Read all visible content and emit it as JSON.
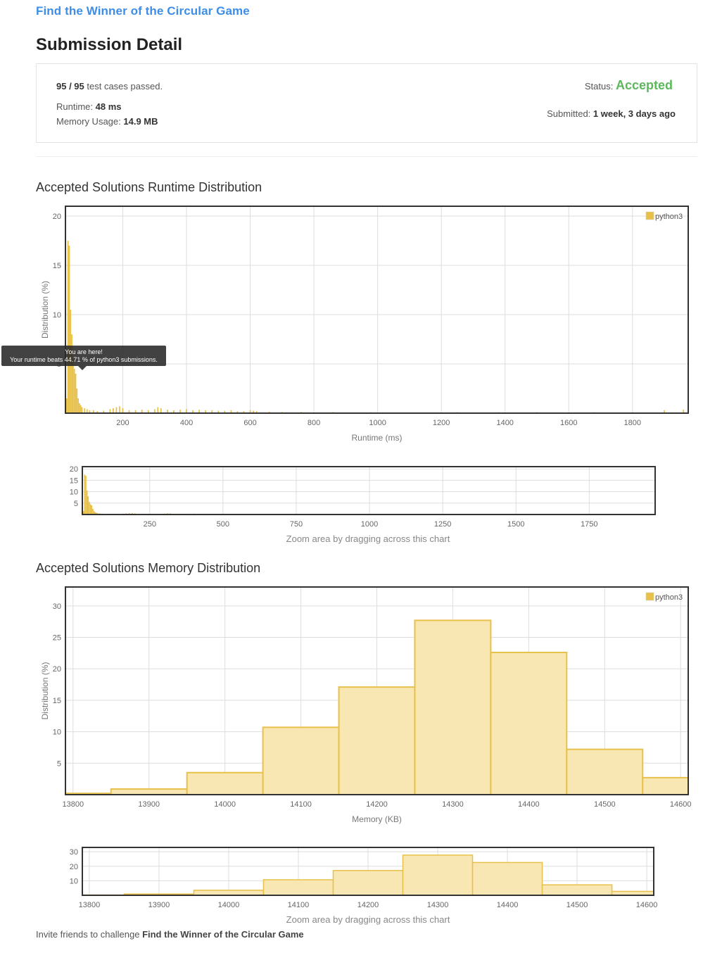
{
  "problem": {
    "title": "Find the Winner of the Circular Game"
  },
  "page": {
    "title": "Submission Detail"
  },
  "summary": {
    "cases_passed": "95 / 95",
    "cases_suffix": "test cases passed.",
    "status_label": "Status:",
    "status_value": "Accepted",
    "runtime_label": "Runtime:",
    "runtime_value": "48 ms",
    "memory_label": "Memory Usage:",
    "memory_value": "14.9 MB",
    "submitted_label": "Submitted:",
    "submitted_value": "1 week, 3 days ago"
  },
  "runtime_section": {
    "title": "Accepted Solutions Runtime Distribution"
  },
  "memory_section": {
    "title": "Accepted Solutions Memory Distribution"
  },
  "tooltip": {
    "line1": "You are here!",
    "line2": "Your runtime beats 44.71 % of python3 submissions."
  },
  "zoom_note": "Zoom area by dragging across this chart",
  "invite": {
    "prefix": "Invite friends to challenge",
    "problem": "Find the Winner of the Circular Game"
  },
  "colors": {
    "bar": "#e8c14a",
    "bar_fill_light": "#f8e6b3",
    "accepted": "#5cb85c",
    "link": "#3d8ee8"
  },
  "chart_data": [
    {
      "type": "bar",
      "ylabel": "Distribution (%)",
      "xlabel": "Runtime (ms)",
      "legend": "python3",
      "legend_position": "top-right",
      "xlim": [
        20,
        1975
      ],
      "ylim": [
        0,
        21
      ],
      "xticks": [
        200,
        400,
        600,
        800,
        1000,
        1200,
        1400,
        1600,
        1800
      ],
      "yticks": [
        5,
        10,
        15,
        20
      ],
      "grid": true,
      "x": [
        24,
        28,
        32,
        36,
        40,
        44,
        48,
        52,
        56,
        60,
        64,
        68,
        72,
        80,
        88,
        96,
        108,
        120,
        140,
        160,
        170,
        180,
        190,
        200,
        220,
        240,
        260,
        280,
        300,
        310,
        320,
        340,
        360,
        380,
        400,
        420,
        440,
        460,
        480,
        500,
        520,
        540,
        560,
        580,
        600,
        610,
        620,
        660,
        700,
        760,
        860,
        980,
        1250,
        1380,
        1500,
        1680,
        1800,
        1900,
        1960
      ],
      "values": [
        1.5,
        17.5,
        17.0,
        10.5,
        8.0,
        5.5,
        4.5,
        4.0,
        2.5,
        1.5,
        1.0,
        0.8,
        0.6,
        0.5,
        0.4,
        0.3,
        0.3,
        0.2,
        0.25,
        0.4,
        0.5,
        0.6,
        0.7,
        0.5,
        0.3,
        0.3,
        0.35,
        0.3,
        0.4,
        0.6,
        0.5,
        0.35,
        0.3,
        0.35,
        0.4,
        0.3,
        0.35,
        0.3,
        0.3,
        0.25,
        0.25,
        0.3,
        0.2,
        0.2,
        0.3,
        0.25,
        0.2,
        0.15,
        0.12,
        0.12,
        0.12,
        0.1,
        0.1,
        0.1,
        0.1,
        0.1,
        0.1,
        0.3,
        0.35
      ]
    },
    {
      "type": "bar",
      "role": "zoom-navigator",
      "xlim": [
        20,
        1975
      ],
      "ylim": [
        0,
        21
      ],
      "xticks": [
        250,
        500,
        750,
        1000,
        1250,
        1500,
        1750
      ],
      "yticks": [
        5,
        10,
        15,
        20
      ],
      "grid": true
    },
    {
      "type": "bar",
      "ylabel": "Distribution (%)",
      "xlabel": "Memory (KB)",
      "legend": "python3",
      "legend_position": "top-right",
      "xlim": [
        13790,
        14610
      ],
      "ylim": [
        0,
        33
      ],
      "xticks": [
        13800,
        13900,
        14000,
        14100,
        14200,
        14300,
        14400,
        14500,
        14600
      ],
      "yticks": [
        5,
        10,
        15,
        20,
        25,
        30
      ],
      "grid": true,
      "bins": [
        [
          13790,
          13850
        ],
        [
          13850,
          13950
        ],
        [
          13950,
          14050
        ],
        [
          14050,
          14150
        ],
        [
          14150,
          14250
        ],
        [
          14250,
          14350
        ],
        [
          14350,
          14450
        ],
        [
          14450,
          14550
        ],
        [
          14550,
          14610
        ]
      ],
      "values": [
        0.2,
        0.9,
        3.5,
        10.7,
        17.1,
        27.7,
        22.6,
        7.2,
        2.7
      ]
    },
    {
      "type": "bar",
      "role": "zoom-navigator",
      "xlim": [
        13790,
        14610
      ],
      "ylim": [
        0,
        33
      ],
      "xticks": [
        13800,
        13900,
        14000,
        14100,
        14200,
        14300,
        14400,
        14500,
        14600
      ],
      "yticks": [
        10,
        20,
        30
      ],
      "grid": true
    }
  ]
}
